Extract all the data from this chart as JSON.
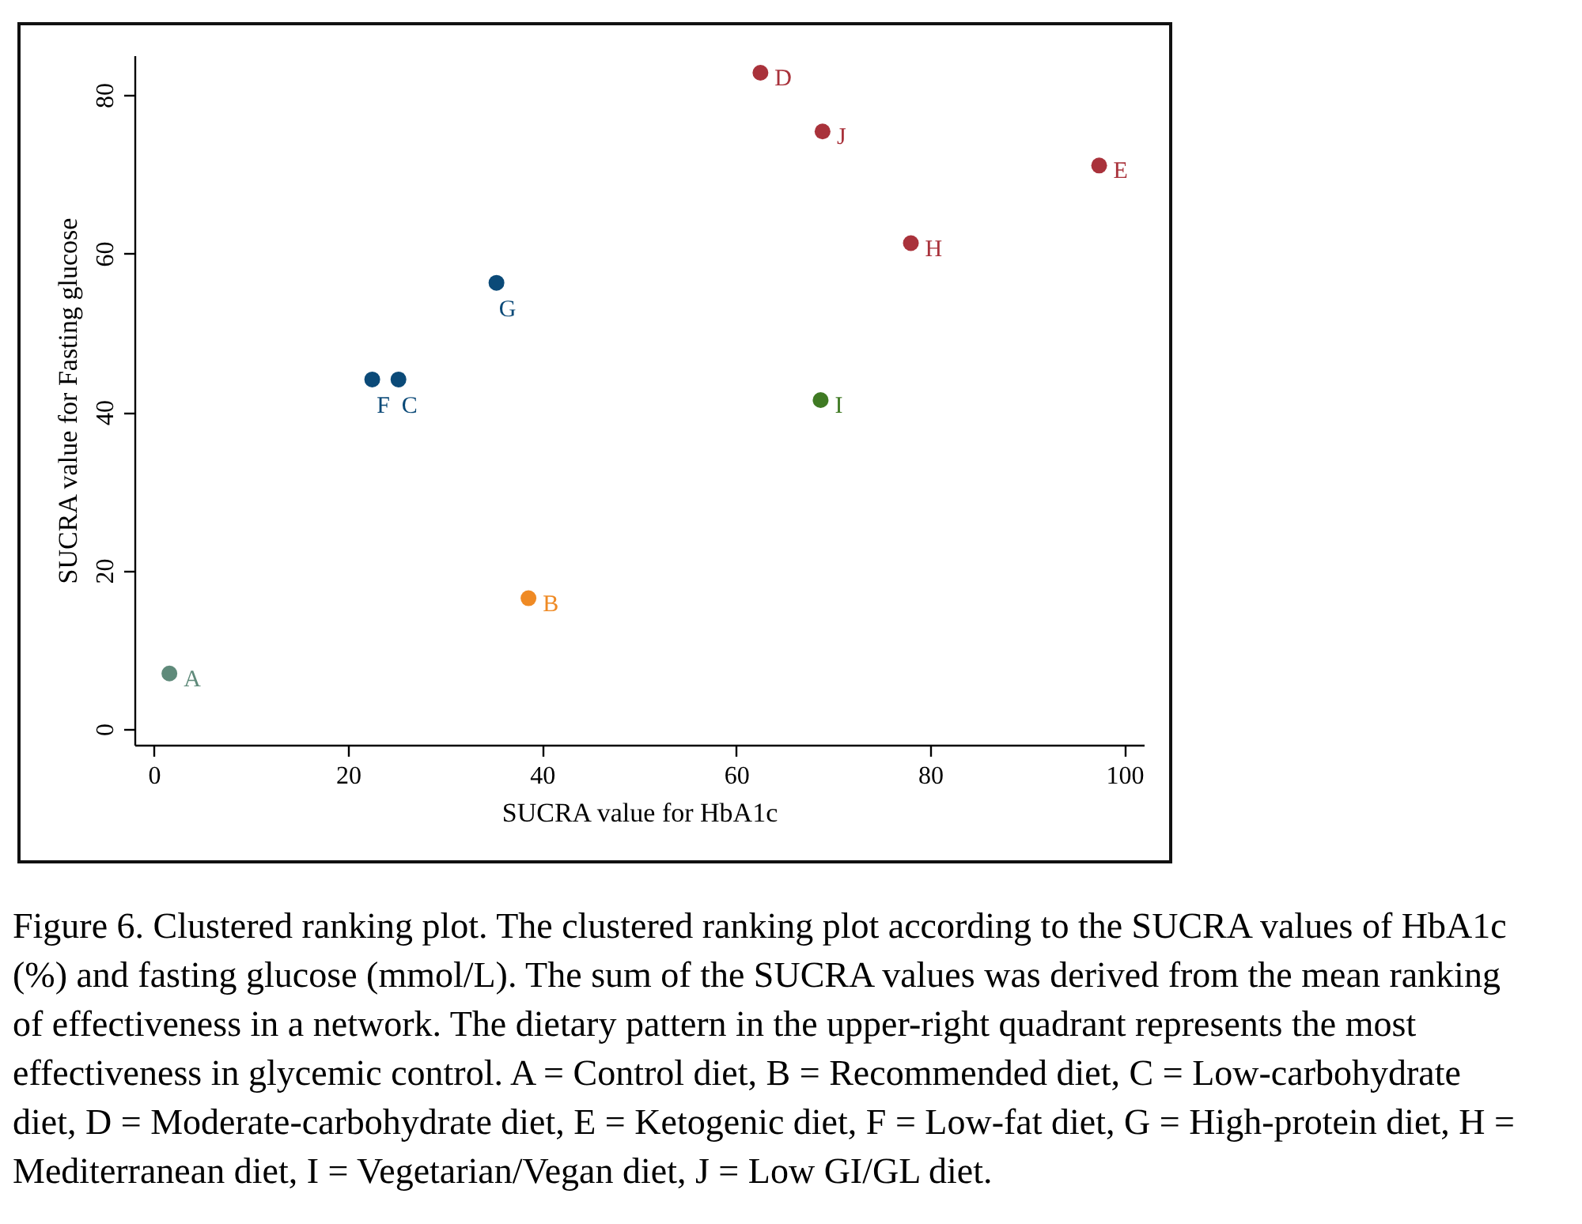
{
  "chart_data": {
    "type": "scatter",
    "xlabel": "SUCRA value for HbA1c",
    "ylabel": "SUCRA value for Fasting glucose",
    "xlim": [
      -2,
      102
    ],
    "ylim": [
      -2,
      85
    ],
    "xticks": [
      0,
      20,
      40,
      60,
      80,
      100
    ],
    "yticks": [
      0,
      20,
      40,
      60,
      80
    ],
    "grid": false,
    "marker": "circle",
    "series": [
      {
        "name": "A",
        "color": "#5f8a7a",
        "x": [
          1.6
        ],
        "values": [
          7.0
        ]
      },
      {
        "name": "B",
        "color": "#ef8a24",
        "x": [
          38.6
        ],
        "values": [
          16.5
        ]
      },
      {
        "name": "C",
        "color": "#0b4a78",
        "x": [
          25.2
        ],
        "values": [
          44.1
        ]
      },
      {
        "name": "D",
        "color": "#a9323b",
        "x": [
          62.5
        ],
        "values": [
          82.8
        ]
      },
      {
        "name": "E",
        "color": "#a9323b",
        "x": [
          97.4
        ],
        "values": [
          71.1
        ]
      },
      {
        "name": "F",
        "color": "#0b4a78",
        "x": [
          22.5
        ],
        "values": [
          44.1
        ]
      },
      {
        "name": "G",
        "color": "#0b4a78",
        "x": [
          35.3
        ],
        "values": [
          56.3
        ]
      },
      {
        "name": "H",
        "color": "#a9323b",
        "x": [
          78.0
        ],
        "values": [
          61.3
        ]
      },
      {
        "name": "I",
        "color": "#3f7a23",
        "x": [
          68.7
        ],
        "values": [
          41.5
        ]
      },
      {
        "name": "J",
        "color": "#a9323b",
        "x": [
          68.9
        ],
        "values": [
          75.4
        ]
      }
    ],
    "annotations": [
      "Figure 6. Clustered ranking plot. The clustered ranking plot according to the SUCRA values of HbA1c (%) and fasting glucose (mmol/L). The sum of the SUCRA values was derived from the mean ranking of effectiveness in a network. The dietary pattern in the upper-right quadrant represents the most effectiveness in glycemic control. A = Control diet, B = Recommended diet, C = Low-carbohydrate diet, D = Moderate-carbohydrate diet, E = Ketogenic diet, F = Low-fat diet, G = High-protein diet, H = Mediterranean diet, I = Vegetarian/Vegan diet, J = Low GI/GL diet."
    ]
  }
}
